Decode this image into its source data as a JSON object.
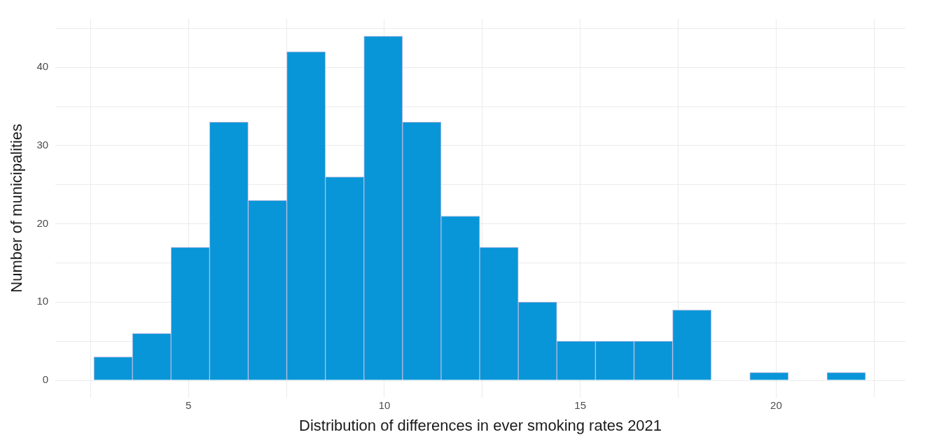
{
  "chart_data": {
    "type": "histogram",
    "xlabel": "Distribution of differences in ever smoking rates 2021",
    "ylabel": "Number of municipalities",
    "bins": [
      2.58,
      3.57,
      4.55,
      5.54,
      6.52,
      7.51,
      8.49,
      9.48,
      10.46,
      11.45,
      12.43,
      13.42,
      14.4,
      15.39,
      16.37,
      17.36,
      18.34,
      19.33,
      20.31,
      21.3,
      22.28
    ],
    "values": [
      3,
      6,
      17,
      33,
      23,
      42,
      26,
      44,
      33,
      21,
      17,
      10,
      5,
      5,
      5,
      9,
      0,
      1,
      0,
      1
    ],
    "color": "#0896d8",
    "xlim": [
      1.6,
      23.3
    ],
    "xticks": [
      {
        "value": 2.5,
        "label": null
      },
      5,
      {
        "value": 7.5,
        "label": null
      },
      10,
      {
        "value": 12.5,
        "label": null
      },
      15,
      {
        "value": 17.5,
        "label": null
      },
      20,
      {
        "value": 22.5,
        "label": null
      }
    ],
    "ylim": [
      -2.2,
      46.2
    ],
    "yticks": [
      0,
      {
        "value": 5,
        "label": null
      },
      10,
      {
        "value": 15,
        "label": null
      },
      20,
      {
        "value": 25,
        "label": null
      },
      30,
      {
        "value": 35,
        "label": null
      },
      40,
      {
        "value": 45,
        "label": null
      }
    ],
    "grid": true
  }
}
